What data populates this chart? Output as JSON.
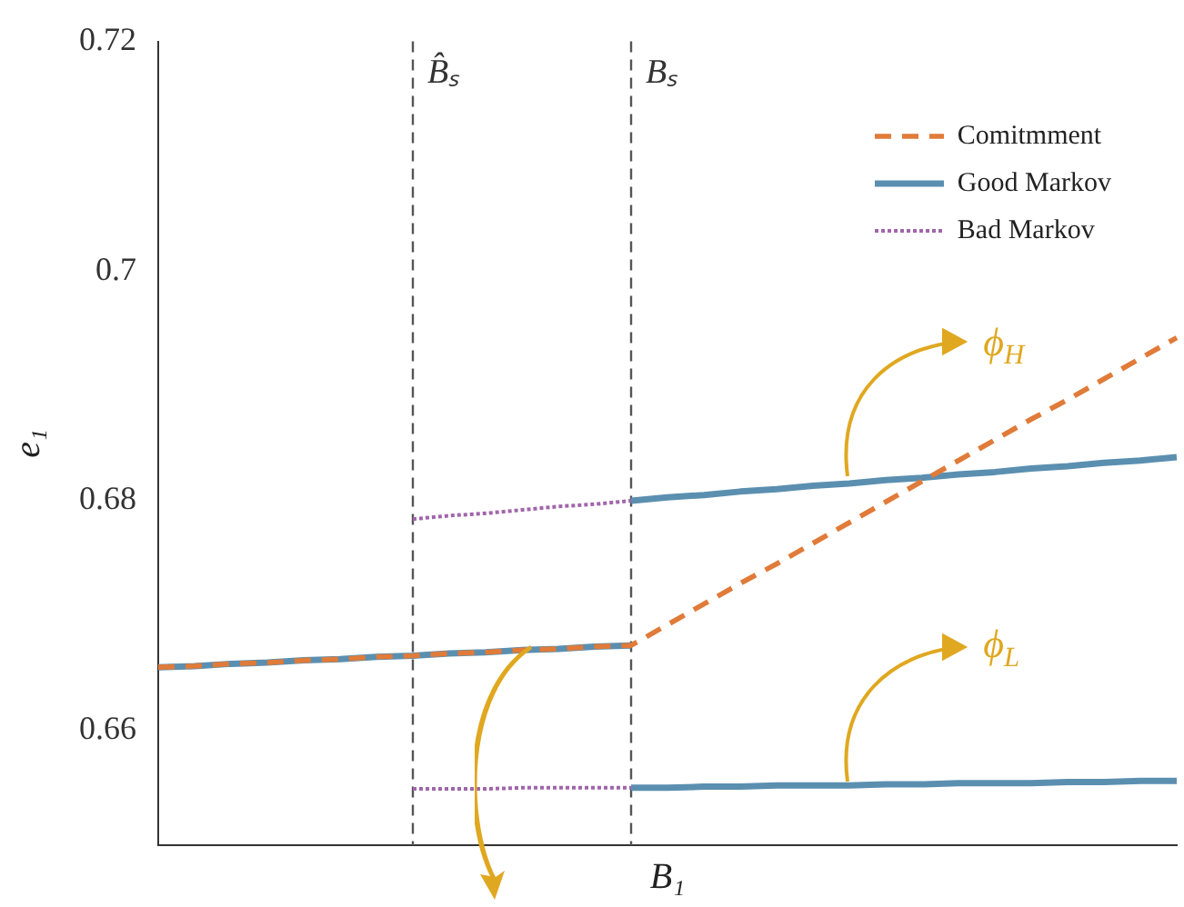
{
  "chart_data": {
    "type": "line",
    "xlabel": "B₁",
    "ylabel": "e₁",
    "categories": [
      null,
      null,
      null,
      null,
      null,
      null,
      null,
      null,
      null,
      null,
      null,
      null,
      null,
      null,
      null,
      null,
      null,
      null,
      null,
      null,
      null,
      null,
      null,
      null,
      null,
      null,
      null,
      null,
      null
    ],
    "ylim": [
      0.65,
      0.72
    ],
    "yticks": [
      0.66,
      0.68,
      0.7,
      0.72
    ],
    "grid": false,
    "legend": "top right",
    "marker": "none",
    "series": [
      {
        "name": "Comitmment",
        "color": "#e07b39",
        "line_style": "dashed",
        "values": [
          0.6655,
          0.6656,
          0.6658,
          0.6659,
          0.6661,
          0.6662,
          0.6664,
          0.6665,
          0.6667,
          0.6668,
          0.667,
          0.6671,
          0.6673,
          0.6674,
          0.6692,
          0.671,
          0.6728,
          0.6745,
          0.6763,
          0.6781,
          0.6799,
          0.6817,
          0.6835,
          0.6853,
          0.6871,
          0.6888,
          0.6906,
          0.6924,
          0.6942
        ]
      },
      {
        "name": "Good Markov",
        "color": "#5b8fb0",
        "line_style": "solid",
        "values": [
          0.6655,
          0.6656,
          0.6658,
          0.6659,
          0.6661,
          0.6662,
          0.6664,
          0.6665,
          0.6667,
          0.6668,
          0.667,
          0.6671,
          0.6673,
          0.6674,
          null,
          null,
          null,
          null,
          null,
          null,
          null,
          null,
          null,
          null,
          null,
          null,
          null,
          null,
          null
        ]
      },
      {
        "color": "#5b8fb0",
        "line_style": "solid",
        "values": [
          null,
          null,
          null,
          null,
          null,
          null,
          null,
          null,
          null,
          null,
          null,
          null,
          null,
          0.68,
          0.6803,
          0.6805,
          0.6808,
          0.681,
          0.6813,
          0.6815,
          0.6818,
          0.682,
          0.6823,
          0.6825,
          0.6828,
          0.683,
          0.6833,
          0.6835,
          0.6838
        ]
      },
      {
        "color": "#5b8fb0",
        "line_style": "solid",
        "values": [
          null,
          null,
          null,
          null,
          null,
          null,
          null,
          null,
          null,
          null,
          null,
          null,
          null,
          0.655,
          0.655,
          0.6551,
          0.6551,
          0.6552,
          0.6552,
          0.6552,
          0.6553,
          0.6553,
          0.6554,
          0.6554,
          0.6554,
          0.6555,
          0.6555,
          0.6556,
          0.6556
        ]
      },
      {
        "name": "Bad Markov",
        "color": "#a066aa",
        "line_style": "dotted",
        "values": [
          null,
          null,
          null,
          null,
          null,
          null,
          null,
          0.6784,
          0.6787,
          0.6789,
          0.6792,
          0.6795,
          0.6797,
          0.68,
          null,
          null,
          null,
          null,
          null,
          null,
          null,
          null,
          null,
          null,
          null,
          null,
          null,
          null,
          null
        ]
      },
      {
        "color": "#a066aa",
        "line_style": "dotted",
        "values": [
          null,
          null,
          null,
          null,
          null,
          null,
          null,
          0.6549,
          0.6549,
          0.6549,
          0.655,
          0.655,
          0.655,
          0.655,
          null,
          null,
          null,
          null,
          null,
          null,
          null,
          null,
          null,
          null,
          null,
          null,
          null,
          null,
          null
        ]
      }
    ],
    "annotations": [
      "B̂ₛ",
      "Bₛ",
      "ϕ$_{H}$",
      "ϕ$_{L}$"
    ]
  }
}
